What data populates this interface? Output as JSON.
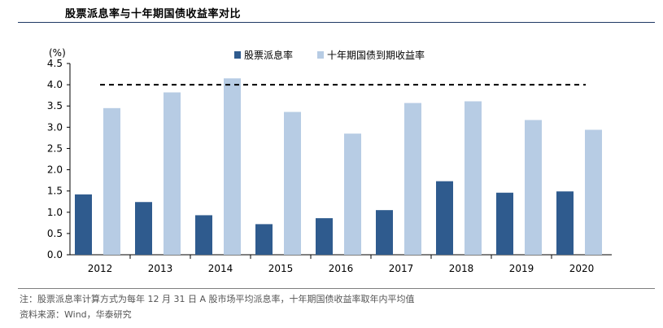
{
  "title": "股票派息率与十年期国债收益率对比",
  "footnote": "注：股票派息率计算方式为每年 12 月 31 日 A 股市场平均派息率，十年期国债收益率取年内平均值",
  "source": "资料来源：Wind，华泰研究",
  "colors": {
    "dividend": "#2f5b8e",
    "bond": "#b7cce4",
    "rule": "#1f3864"
  },
  "chart_data": {
    "type": "bar",
    "unit_label": "(%)",
    "categories": [
      "2012",
      "2013",
      "2014",
      "2015",
      "2016",
      "2017",
      "2018",
      "2019",
      "2020"
    ],
    "series": [
      {
        "name": "股票派息率",
        "values": [
          1.42,
          1.24,
          0.93,
          0.72,
          0.86,
          1.05,
          1.73,
          1.46,
          1.49
        ]
      },
      {
        "name": "十年期国债到期收益率",
        "values": [
          3.45,
          3.82,
          4.15,
          3.36,
          2.85,
          3.57,
          3.61,
          3.17,
          2.94
        ]
      }
    ],
    "reference_line": {
      "value": 4.0,
      "style": "dashed"
    },
    "ylim": [
      0,
      4.5
    ],
    "yticks": [
      "0.0",
      "0.5",
      "1.0",
      "1.5",
      "2.0",
      "2.5",
      "3.0",
      "3.5",
      "4.0",
      "4.5"
    ],
    "legend": "top-center",
    "grid": false
  }
}
